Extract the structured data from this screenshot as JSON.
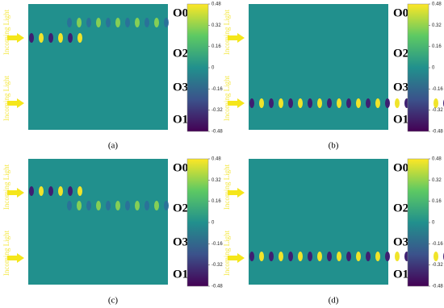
{
  "figure": {
    "panels": [
      {
        "caption": "(a)",
        "outputs": [
          "O0",
          "O2",
          "O3",
          "O1"
        ],
        "incoming": [
          "Incoming Light",
          "Incoming Light"
        ],
        "colorbar_ticks": [
          0.48,
          0.32,
          0.16,
          0,
          -0.16,
          -0.32,
          -0.48
        ]
      },
      {
        "caption": "(b)",
        "outputs": [
          "O0",
          "O2",
          "O3",
          "O1"
        ],
        "incoming": [
          "Incoming Light",
          "Incoming Light"
        ],
        "colorbar_ticks": [
          0.48,
          0.32,
          0.16,
          0,
          -0.16,
          -0.32,
          -0.48
        ]
      },
      {
        "caption": "(c)",
        "outputs": [
          "O0",
          "O2",
          "O3",
          "O1"
        ],
        "incoming": [
          "Incoming Light",
          "Incoming Light"
        ],
        "colorbar_ticks": [
          0.48,
          0.32,
          0.16,
          0,
          -0.16,
          -0.32,
          -0.48
        ]
      },
      {
        "caption": "(d)",
        "outputs": [
          "O0",
          "O2",
          "O3",
          "O1"
        ],
        "incoming": [
          "Incoming Light",
          "Incoming Light"
        ],
        "colorbar_ticks": [
          0.48,
          0.32,
          0.16,
          0,
          -0.16,
          -0.32,
          -0.48
        ]
      }
    ]
  }
}
